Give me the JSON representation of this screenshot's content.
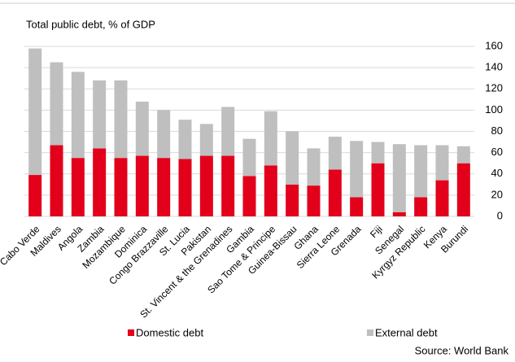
{
  "chart_data": {
    "type": "stacked_bar",
    "title": "Total public debt, % of GDP",
    "source": "Source: World Bank",
    "categories": [
      "Cabo Verde",
      "Maldives",
      "Angola",
      "Zambia",
      "Mozambique",
      "Dominica",
      "Congo Brazzaville",
      "St. Lucia",
      "Pakistan",
      "St. Vincent & the Grenadines",
      "Gambia",
      "Sao Tome & Principe",
      "Guinea-Bissau",
      "Ghana",
      "Sierra Leone",
      "Grenada",
      "Fiji",
      "Senegal",
      "Kyrgyz Republic",
      "Kenya",
      "Burundi"
    ],
    "series": [
      {
        "name": "Domestic debt",
        "color": "#e2001a",
        "values": [
          39,
          67,
          55,
          64,
          55,
          57,
          55,
          54,
          57,
          57,
          38,
          48,
          30,
          29,
          44,
          18,
          50,
          4,
          18,
          34,
          50
        ]
      },
      {
        "name": "External debt",
        "color": "#bfbfbf",
        "values": [
          119,
          78,
          81,
          64,
          73,
          51,
          45,
          37,
          30,
          46,
          35,
          51,
          50,
          35,
          31,
          53,
          20,
          64,
          49,
          33,
          16
        ]
      }
    ],
    "ylim": [
      0,
      160
    ],
    "yticks": [
      0,
      20,
      40,
      60,
      80,
      100,
      120,
      140,
      160
    ],
    "grid": true
  }
}
